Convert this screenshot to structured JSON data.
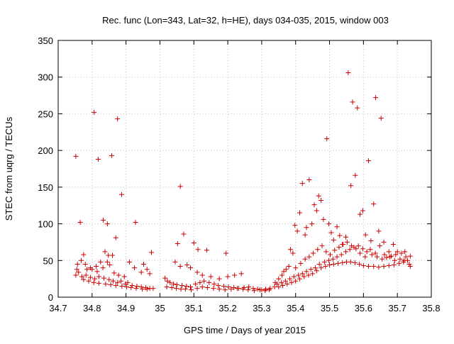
{
  "chart_data": {
    "type": "scatter",
    "title": "Rec. func (Lon=343, Lat=32, h=HE), days 034-035, 2015, window 003",
    "xlabel": "GPS time / Days of year 2015",
    "ylabel": "STEC from uqrg / TECUs",
    "xlim": [
      34.7,
      35.8
    ],
    "ylim": [
      0,
      350
    ],
    "xticks": [
      "34.7",
      "34.8",
      "34.9",
      "35",
      "35.1",
      "35.2",
      "35.3",
      "35.4",
      "35.5",
      "35.6",
      "35.7",
      "35.8"
    ],
    "yticks": [
      "0",
      "50",
      "100",
      "150",
      "200",
      "250",
      "300",
      "350"
    ],
    "grid": true,
    "marker_color": "#cc0000",
    "marker": "plus",
    "points": [
      [
        34.752,
        192
      ],
      [
        34.765,
        102
      ],
      [
        34.806,
        252
      ],
      [
        34.818,
        188
      ],
      [
        34.833,
        105
      ],
      [
        34.845,
        100
      ],
      [
        34.858,
        193
      ],
      [
        34.875,
        243
      ],
      [
        34.887,
        140
      ],
      [
        34.928,
        102
      ],
      [
        34.952,
        45
      ],
      [
        34.975,
        61
      ],
      [
        34.87,
        81
      ],
      [
        34.848,
        57
      ],
      [
        34.838,
        62
      ],
      [
        34.86,
        57
      ],
      [
        34.845,
        48
      ],
      [
        34.825,
        48
      ],
      [
        34.812,
        42
      ],
      [
        34.795,
        40
      ],
      [
        34.785,
        38
      ],
      [
        34.775,
        58
      ],
      [
        34.768,
        50
      ],
      [
        34.757,
        45
      ],
      [
        34.755,
        38
      ],
      [
        34.78,
        45
      ],
      [
        34.8,
        38
      ],
      [
        34.815,
        35
      ],
      [
        34.832,
        40
      ],
      [
        34.852,
        44
      ],
      [
        34.865,
        33
      ],
      [
        34.878,
        30
      ],
      [
        34.895,
        28
      ],
      [
        34.91,
        48
      ],
      [
        34.925,
        40
      ],
      [
        34.945,
        34
      ],
      [
        34.962,
        38
      ],
      [
        34.97,
        32
      ],
      [
        34.752,
        30
      ],
      [
        34.76,
        34
      ],
      [
        34.77,
        28
      ],
      [
        34.782,
        30
      ],
      [
        34.795,
        27
      ],
      [
        34.808,
        25
      ],
      [
        34.82,
        28
      ],
      [
        34.835,
        26
      ],
      [
        34.85,
        24
      ],
      [
        34.862,
        22
      ],
      [
        34.875,
        20
      ],
      [
        34.885,
        22
      ],
      [
        34.898,
        18
      ],
      [
        34.905,
        20
      ],
      [
        34.918,
        16
      ],
      [
        34.932,
        15
      ],
      [
        34.945,
        14
      ],
      [
        34.958,
        13
      ],
      [
        34.97,
        12
      ],
      [
        34.98,
        12
      ],
      [
        34.775,
        24
      ],
      [
        34.79,
        22
      ],
      [
        34.805,
        20
      ],
      [
        34.82,
        19
      ],
      [
        34.84,
        18
      ],
      [
        34.855,
        17
      ],
      [
        34.87,
        16
      ],
      [
        34.888,
        15
      ],
      [
        34.902,
        14
      ],
      [
        34.915,
        13
      ],
      [
        34.93,
        12
      ],
      [
        34.948,
        11
      ],
      [
        34.962,
        11
      ],
      [
        35.06,
        151
      ],
      [
        35.07,
        86
      ],
      [
        35.052,
        73
      ],
      [
        35.08,
        44
      ],
      [
        35.1,
        74
      ],
      [
        35.112,
        65
      ],
      [
        35.138,
        64
      ],
      [
        35.195,
        60
      ],
      [
        35.045,
        48
      ],
      [
        35.06,
        42
      ],
      [
        35.09,
        40
      ],
      [
        35.11,
        34
      ],
      [
        35.125,
        30
      ],
      [
        35.15,
        28
      ],
      [
        35.175,
        25
      ],
      [
        35.2,
        28
      ],
      [
        35.22,
        30
      ],
      [
        35.24,
        32
      ],
      [
        35.015,
        26
      ],
      [
        35.022,
        22
      ],
      [
        35.03,
        20
      ],
      [
        35.04,
        18
      ],
      [
        35.05,
        17
      ],
      [
        35.065,
        16
      ],
      [
        35.078,
        15
      ],
      [
        35.09,
        14
      ],
      [
        35.105,
        18
      ],
      [
        35.118,
        20
      ],
      [
        35.13,
        22
      ],
      [
        35.145,
        20
      ],
      [
        35.16,
        18
      ],
      [
        35.172,
        16
      ],
      [
        35.188,
        15
      ],
      [
        35.202,
        14
      ],
      [
        35.218,
        13
      ],
      [
        35.232,
        12
      ],
      [
        35.248,
        13
      ],
      [
        35.262,
        14
      ],
      [
        35.275,
        12
      ],
      [
        35.288,
        11
      ],
      [
        35.3,
        10
      ],
      [
        35.312,
        11
      ],
      [
        35.325,
        12
      ],
      [
        35.338,
        14
      ],
      [
        35.02,
        14
      ],
      [
        35.035,
        13
      ],
      [
        35.048,
        12
      ],
      [
        35.062,
        11
      ],
      [
        35.075,
        11
      ],
      [
        35.092,
        10
      ],
      [
        35.11,
        12
      ],
      [
        35.125,
        14
      ],
      [
        35.14,
        13
      ],
      [
        35.158,
        12
      ],
      [
        35.175,
        11
      ],
      [
        35.192,
        10
      ],
      [
        35.21,
        11
      ],
      [
        35.228,
        12
      ],
      [
        35.245,
        11
      ],
      [
        35.26,
        10
      ],
      [
        35.278,
        9
      ],
      [
        35.295,
        10
      ],
      [
        35.31,
        9
      ],
      [
        35.322,
        10
      ],
      [
        35.34,
        20
      ],
      [
        35.35,
        25
      ],
      [
        35.36,
        30
      ],
      [
        35.365,
        35
      ],
      [
        35.372,
        38
      ],
      [
        35.38,
        42
      ],
      [
        35.385,
        65
      ],
      [
        35.392,
        60
      ],
      [
        35.398,
        98
      ],
      [
        35.405,
        90
      ],
      [
        35.412,
        115
      ],
      [
        35.42,
        155
      ],
      [
        35.428,
        85
      ],
      [
        35.432,
        95
      ],
      [
        35.44,
        160
      ],
      [
        35.448,
        100
      ],
      [
        35.455,
        126
      ],
      [
        35.462,
        118
      ],
      [
        35.468,
        138
      ],
      [
        35.475,
        132
      ],
      [
        35.482,
        106
      ],
      [
        35.492,
        216
      ],
      [
        35.498,
        100
      ],
      [
        35.505,
        88
      ],
      [
        35.512,
        78
      ],
      [
        35.522,
        96
      ],
      [
        35.53,
        84
      ],
      [
        35.538,
        72
      ],
      [
        35.548,
        82
      ],
      [
        35.555,
        306
      ],
      [
        35.563,
        152
      ],
      [
        35.568,
        266
      ],
      [
        35.576,
        166
      ],
      [
        35.582,
        258
      ],
      [
        35.59,
        113
      ],
      [
        35.598,
        118
      ],
      [
        35.606,
        85
      ],
      [
        35.615,
        186
      ],
      [
        35.622,
        77
      ],
      [
        35.63,
        127
      ],
      [
        35.636,
        272
      ],
      [
        35.645,
        90
      ],
      [
        35.652,
        244
      ],
      [
        35.66,
        75
      ],
      [
        35.675,
        62
      ],
      [
        35.688,
        72
      ],
      [
        35.7,
        62
      ],
      [
        35.712,
        60
      ],
      [
        35.722,
        62
      ],
      [
        35.345,
        18
      ],
      [
        35.358,
        20
      ],
      [
        35.37,
        22
      ],
      [
        35.383,
        25
      ],
      [
        35.395,
        28
      ],
      [
        35.408,
        30
      ],
      [
        35.42,
        32
      ],
      [
        35.432,
        35
      ],
      [
        35.445,
        38
      ],
      [
        35.458,
        40
      ],
      [
        35.47,
        45
      ],
      [
        35.485,
        48
      ],
      [
        35.498,
        50
      ],
      [
        35.51,
        52
      ],
      [
        35.522,
        55
      ],
      [
        35.535,
        58
      ],
      [
        35.548,
        62
      ],
      [
        35.56,
        65
      ],
      [
        35.572,
        68
      ],
      [
        35.585,
        70
      ],
      [
        35.598,
        66
      ],
      [
        35.61,
        62
      ],
      [
        35.625,
        58
      ],
      [
        35.64,
        55
      ],
      [
        35.655,
        52
      ],
      [
        35.668,
        54
      ],
      [
        35.682,
        56
      ],
      [
        35.695,
        58
      ],
      [
        35.708,
        52
      ],
      [
        35.72,
        50
      ],
      [
        35.735,
        45
      ],
      [
        35.35,
        14
      ],
      [
        35.362,
        16
      ],
      [
        35.375,
        18
      ],
      [
        35.388,
        20
      ],
      [
        35.4,
        22
      ],
      [
        35.412,
        25
      ],
      [
        35.425,
        28
      ],
      [
        35.438,
        30
      ],
      [
        35.45,
        32
      ],
      [
        35.462,
        36
      ],
      [
        35.475,
        40
      ],
      [
        35.488,
        42
      ],
      [
        35.5,
        44
      ],
      [
        35.512,
        45
      ],
      [
        35.525,
        46
      ],
      [
        35.538,
        47
      ],
      [
        35.55,
        48
      ],
      [
        35.562,
        48
      ],
      [
        35.575,
        47
      ],
      [
        35.588,
        45
      ],
      [
        35.6,
        43
      ],
      [
        35.615,
        42
      ],
      [
        35.63,
        42
      ],
      [
        35.645,
        41
      ],
      [
        35.66,
        42
      ],
      [
        35.675,
        43
      ],
      [
        35.69,
        44
      ],
      [
        35.705,
        46
      ],
      [
        35.718,
        48
      ],
      [
        35.73,
        50
      ],
      [
        35.738,
        42
      ],
      [
        35.4,
        40
      ],
      [
        35.415,
        46
      ],
      [
        35.428,
        52
      ],
      [
        35.44,
        55
      ],
      [
        35.452,
        60
      ],
      [
        35.465,
        65
      ],
      [
        35.478,
        70
      ],
      [
        35.49,
        62
      ],
      [
        35.502,
        58
      ],
      [
        35.515,
        64
      ],
      [
        35.528,
        68
      ],
      [
        35.54,
        72
      ],
      [
        35.552,
        75
      ],
      [
        35.565,
        70
      ],
      [
        35.578,
        66
      ],
      [
        35.59,
        60
      ],
      [
        35.605,
        55
      ],
      [
        35.62,
        65
      ],
      [
        35.635,
        60
      ],
      [
        35.648,
        70
      ],
      [
        35.662,
        58
      ],
      [
        35.678,
        55
      ],
      [
        35.692,
        50
      ],
      [
        35.725,
        55
      ],
      [
        35.738,
        56
      ]
    ]
  }
}
